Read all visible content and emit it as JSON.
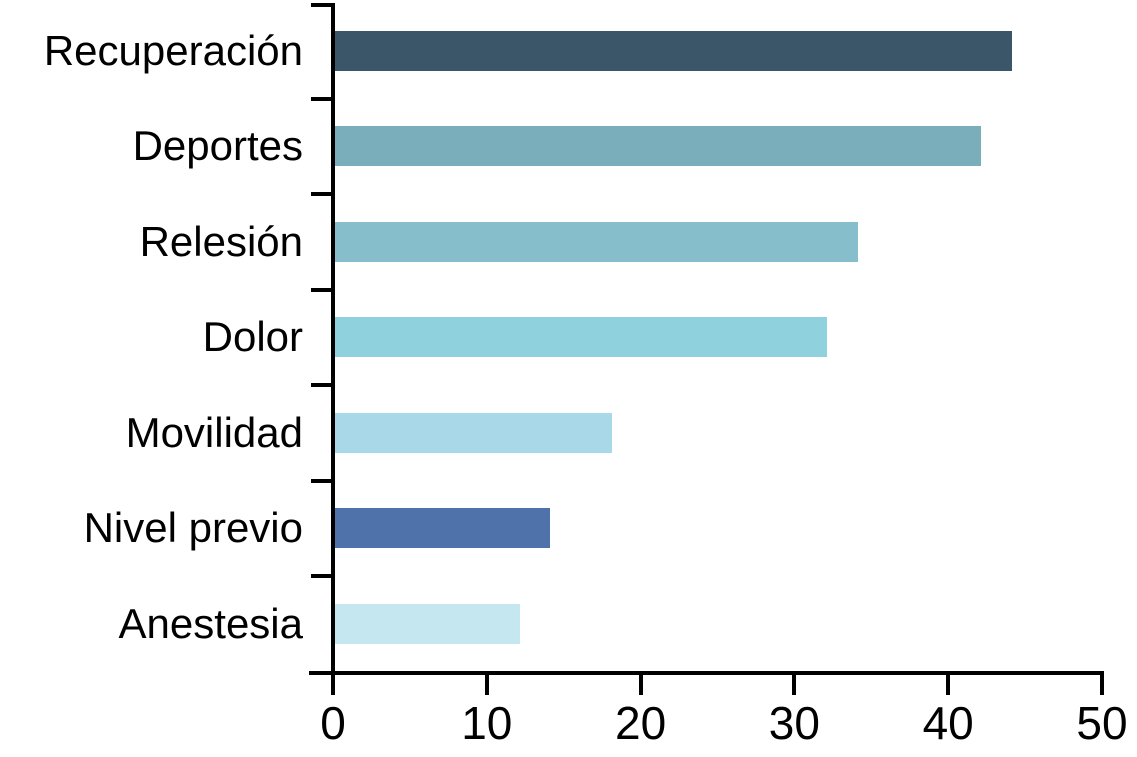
{
  "chart_data": {
    "type": "bar",
    "orientation": "horizontal",
    "title": "",
    "xlabel": "",
    "ylabel": "",
    "categories": [
      "Recuperación",
      "Deportes",
      "Relesión",
      "Dolor",
      "Movilidad",
      "Nivel previo",
      "Anestesia"
    ],
    "values": [
      44,
      42,
      34,
      32,
      18,
      14,
      12
    ],
    "bar_colors": [
      "#3b5668",
      "#79aeba",
      "#86becb",
      "#8fd2de",
      "#a9d9e9",
      "#4e72a9",
      "#c5e7ef"
    ],
    "x_ticks": [
      "0",
      "10",
      "20",
      "30",
      "40",
      "50"
    ],
    "x_tick_values": [
      0,
      10,
      20,
      30,
      40,
      50
    ],
    "xlim": [
      0,
      50
    ],
    "grid": false,
    "legend": null,
    "axis_color": "#000000",
    "background_color": "#ffffff"
  }
}
